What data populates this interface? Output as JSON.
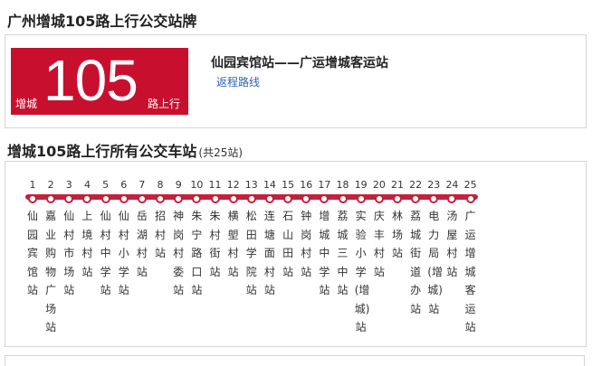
{
  "page_title": "广州增城105路上行公交站牌",
  "route": {
    "prefix": "增城",
    "number": "105",
    "suffix": "路上行",
    "name": "仙园宾馆站——广运增城客运站",
    "reverse_link": "返程路线",
    "badge_color": "#c8102e"
  },
  "stops_section": {
    "title": "增城105路上行所有公交车站",
    "count_note": "(共25站)"
  },
  "stops": [
    {
      "num": "1",
      "name": "仙园宾馆站"
    },
    {
      "num": "2",
      "name": "嘉业购物广场站"
    },
    {
      "num": "3",
      "name": "仙村市场站"
    },
    {
      "num": "4",
      "name": "上境村站"
    },
    {
      "num": "5",
      "name": "仙村中学站"
    },
    {
      "num": "6",
      "name": "仙村小学站"
    },
    {
      "num": "7",
      "name": "岳湖村站"
    },
    {
      "num": "8",
      "name": "招村站"
    },
    {
      "num": "9",
      "name": "神岗村委站"
    },
    {
      "num": "10",
      "name": "朱宁路口站"
    },
    {
      "num": "11",
      "name": "朱村街站"
    },
    {
      "num": "12",
      "name": "横塱村站"
    },
    {
      "num": "13",
      "name": "松田学院站"
    },
    {
      "num": "14",
      "name": "连塘面村站"
    },
    {
      "num": "15",
      "name": "石山田站"
    },
    {
      "num": "16",
      "name": "钟岗村站"
    },
    {
      "num": "17",
      "name": "增城中学站"
    },
    {
      "num": "18",
      "name": "荔城三中站"
    },
    {
      "num": "19",
      "name": "实验小学(增城)站"
    },
    {
      "num": "20",
      "name": "庆丰村站"
    },
    {
      "num": "21",
      "name": "林场站"
    },
    {
      "num": "22",
      "name": "荔城街道办站"
    },
    {
      "num": "23",
      "name": "电力局(增城)站"
    },
    {
      "num": "24",
      "name": "汤屋村站"
    },
    {
      "num": "25",
      "name": "广运增城客运站"
    }
  ],
  "line_color": "#c4213c"
}
